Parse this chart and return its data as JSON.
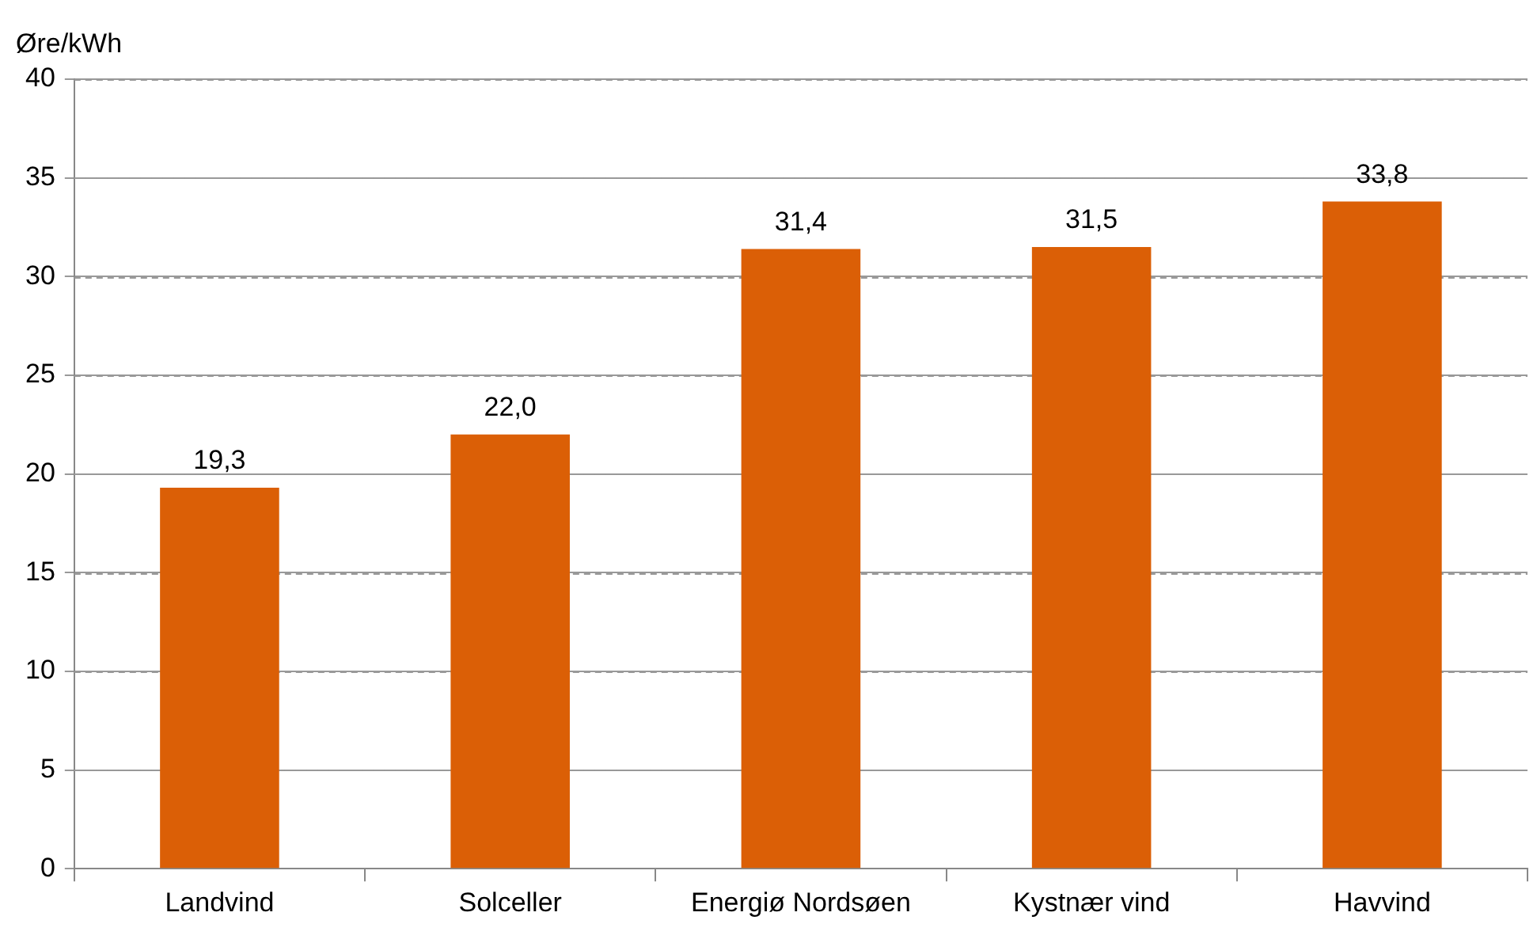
{
  "chart_data": {
    "type": "bar",
    "ylabel": "Øre/kWh",
    "categories": [
      "Landvind",
      "Solceller",
      "Energiø Nordsøen",
      "Kystnær vind",
      "Havvind"
    ],
    "values": [
      19.3,
      22.0,
      31.4,
      31.5,
      33.8
    ],
    "value_labels": [
      "19,3",
      "22,0",
      "31,4",
      "31,5",
      "33,8"
    ],
    "color": "#db5f06",
    "ylim": [
      0,
      40
    ],
    "yticks": [
      0,
      5,
      10,
      15,
      20,
      25,
      30,
      35,
      40
    ],
    "grid": "y",
    "legend": false
  }
}
